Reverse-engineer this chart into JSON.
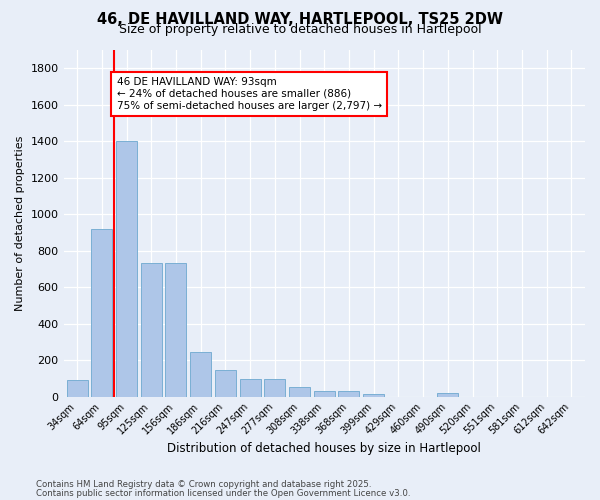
{
  "title_line1": "46, DE HAVILLAND WAY, HARTLEPOOL, TS25 2DW",
  "title_line2": "Size of property relative to detached houses in Hartlepool",
  "xlabel": "Distribution of detached houses by size in Hartlepool",
  "ylabel": "Number of detached properties",
  "bar_labels": [
    "34sqm",
    "64sqm",
    "95sqm",
    "125sqm",
    "156sqm",
    "186sqm",
    "216sqm",
    "247sqm",
    "277sqm",
    "308sqm",
    "338sqm",
    "368sqm",
    "399sqm",
    "429sqm",
    "460sqm",
    "490sqm",
    "520sqm",
    "551sqm",
    "581sqm",
    "612sqm",
    "642sqm"
  ],
  "bar_values": [
    90,
    920,
    1400,
    730,
    730,
    245,
    145,
    95,
    95,
    55,
    30,
    30,
    15,
    0,
    0,
    20,
    0,
    0,
    0,
    0,
    0
  ],
  "bar_color": "#aec6e8",
  "bar_edgecolor": "#7aafd4",
  "vline_x": 1.5,
  "vline_color": "red",
  "annotation_text": "46 DE HAVILLAND WAY: 93sqm\n← 24% of detached houses are smaller (886)\n75% of semi-detached houses are larger (2,797) →",
  "annotation_box_color": "white",
  "annotation_box_edgecolor": "red",
  "ylim": [
    0,
    1900
  ],
  "yticks": [
    0,
    200,
    400,
    600,
    800,
    1000,
    1200,
    1400,
    1600,
    1800
  ],
  "bg_color": "#e8eef8",
  "footer_line1": "Contains HM Land Registry data © Crown copyright and database right 2025.",
  "footer_line2": "Contains public sector information licensed under the Open Government Licence v3.0."
}
